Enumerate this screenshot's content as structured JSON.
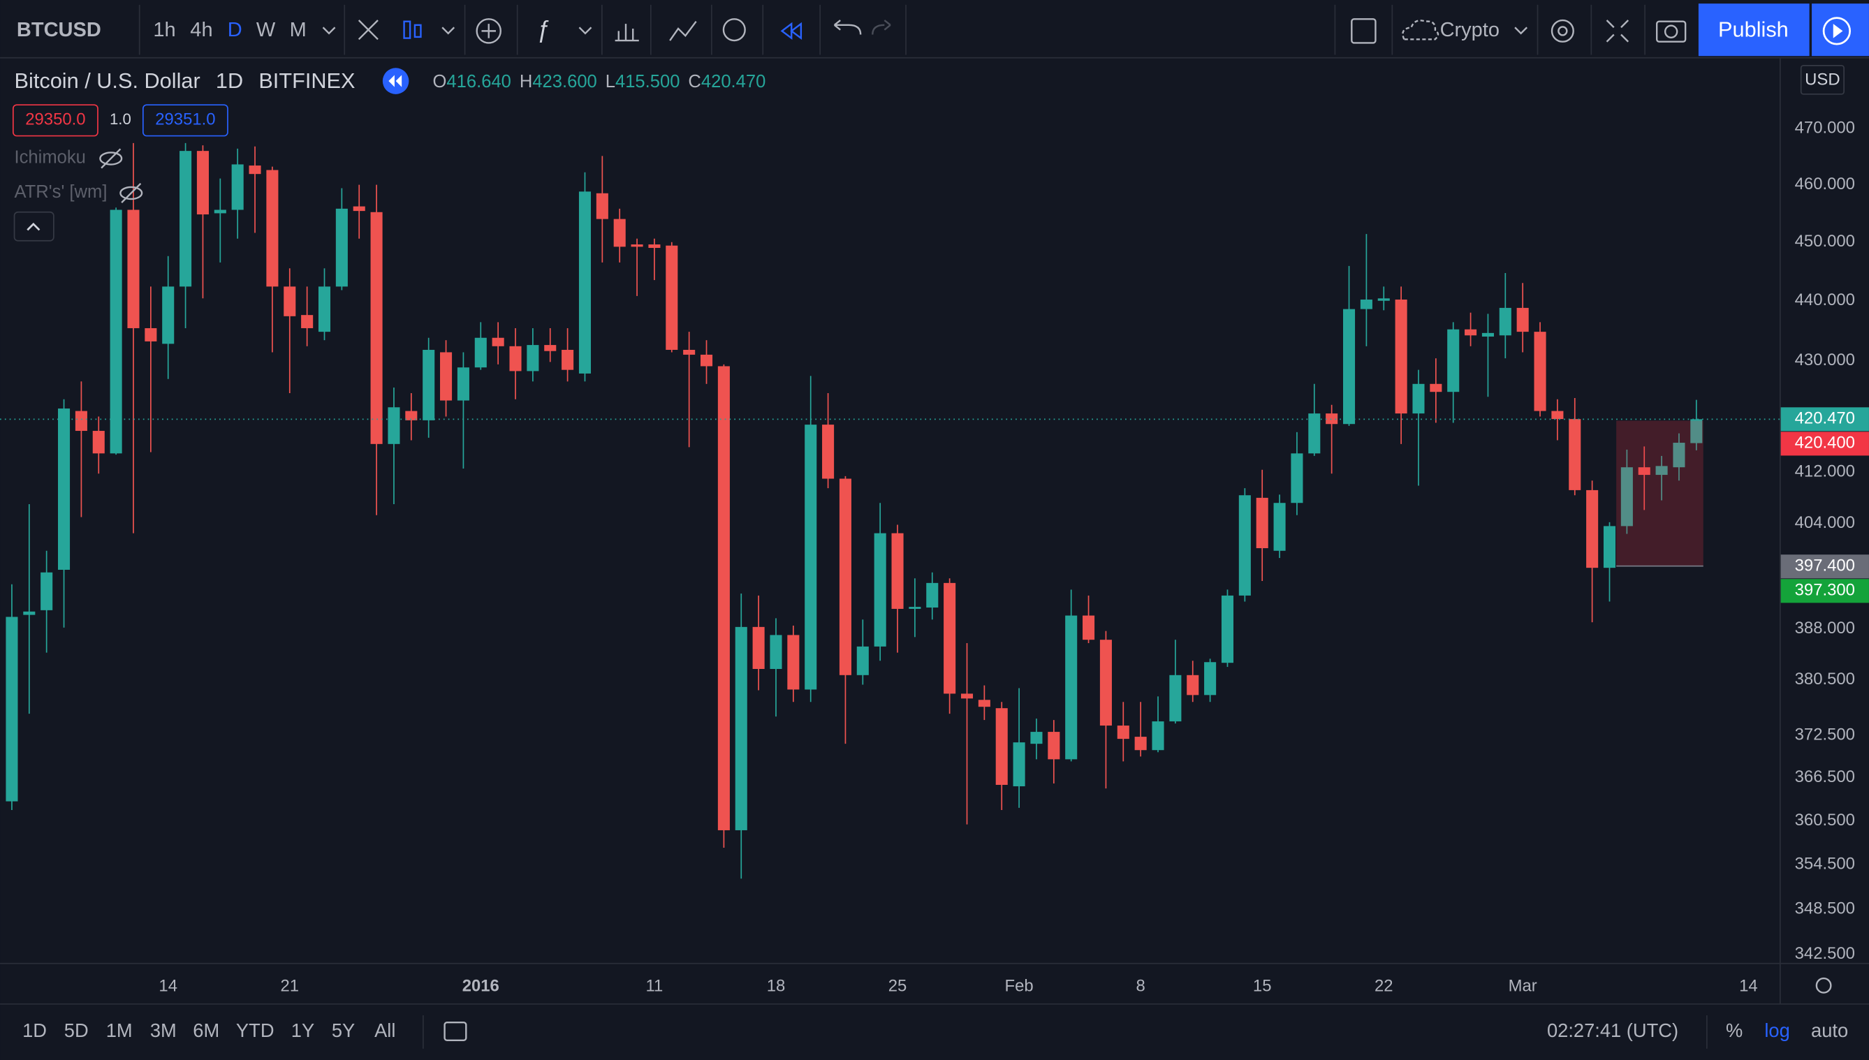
{
  "toolbar": {
    "symbol": "BTCUSD",
    "intervals": [
      "1h",
      "4h",
      "D",
      "W",
      "M"
    ],
    "active_interval": 2,
    "symbol_type": "Crypto",
    "publish": "Publish"
  },
  "legend": {
    "title": "Bitcoin / U.S. Dollar",
    "interval": "1D",
    "exchange": "BITFINEX",
    "ohlc": [
      {
        "label": "O",
        "value": "416.640"
      },
      {
        "label": "H",
        "value": "423.600"
      },
      {
        "label": "L",
        "value": "415.500"
      },
      {
        "label": "C",
        "value": "420.470"
      }
    ]
  },
  "order_panel": {
    "sell": "29350.0",
    "quantity": "1.0",
    "buy": "29351.0"
  },
  "indicators": [
    "Ichimoku",
    "ATR's' [wm]"
  ],
  "currency": "USD",
  "bottom_bar": {
    "ranges": [
      "1D",
      "5D",
      "1M",
      "3M",
      "6M",
      "YTD",
      "1Y",
      "5Y",
      "All"
    ],
    "clock": "02:27:41 (UTC)",
    "percent": "%",
    "log": "log",
    "auto": "auto"
  },
  "chart_data": {
    "type": "candlestick",
    "log_scale": true,
    "grid": false,
    "up_color": "#26a69a",
    "down_color": "#ef5350",
    "categories": [
      null,
      null,
      null,
      null,
      null,
      null,
      null,
      null,
      null,
      "14",
      null,
      null,
      null,
      null,
      null,
      null,
      "21",
      null,
      null,
      null,
      null,
      null,
      null,
      null,
      null,
      null,
      null,
      "2016",
      null,
      null,
      null,
      null,
      null,
      null,
      null,
      null,
      null,
      "11",
      null,
      null,
      null,
      null,
      null,
      null,
      "18",
      null,
      null,
      null,
      null,
      null,
      null,
      "25",
      null,
      null,
      null,
      null,
      null,
      null,
      "Feb",
      null,
      null,
      null,
      null,
      null,
      null,
      "8",
      null,
      null,
      null,
      null,
      null,
      null,
      "15",
      null,
      null,
      null,
      null,
      null,
      null,
      "22",
      null,
      null,
      null,
      null,
      null,
      null,
      null,
      "Mar",
      null,
      null,
      null,
      null,
      null,
      null,
      null,
      null,
      null,
      null,
      null,
      null,
      "14"
    ],
    "open": [
      363.2,
      390.1,
      390.8,
      396.9,
      421.8,
      418.6,
      415.0,
      455.6,
      435.4,
      432.8,
      442.4,
      466.0,
      455.0,
      455.6,
      463.4,
      462.6,
      442.4,
      437.6,
      434.8,
      442.4,
      456.2,
      455.2,
      416.5,
      421.8,
      420.3,
      431.4,
      423.5,
      428.9,
      433.8,
      432.4,
      428.3,
      432.6,
      431.8,
      427.9,
      458.5,
      454.0,
      449.6,
      449.6,
      449.4,
      431.8,
      431.0,
      429.1,
      359.2,
      388.3,
      382.1,
      387.1,
      379.1,
      419.6,
      411.0,
      381.2,
      385.4,
      402.5,
      391.0,
      391.2,
      394.9,
      378.5,
      377.6,
      376.4,
      365.3,
      371.3,
      373.0,
      369.1,
      390.0,
      386.4,
      373.9,
      372.3,
      370.4,
      374.5,
      381.2,
      378.3,
      383.0,
      393.0,
      408.0,
      399.8,
      407.2,
      415.0,
      421.4,
      419.7,
      438.6,
      440.0,
      440.2,
      421.4,
      426.2,
      424.9,
      435.2,
      434.0,
      434.2,
      438.8,
      434.8,
      421.8,
      420.5,
      409.2,
      397.2,
      403.6,
      412.8,
      411.6,
      412.8,
      416.64,
      null,
      null,
      null
    ],
    "high": [
      394.7,
      407.0,
      399.8,
      423.7,
      426.6,
      420.9,
      456.0,
      467.4,
      442.4,
      447.6,
      467.4,
      467.0,
      461.1,
      466.4,
      466.8,
      463.2,
      445.5,
      442.4,
      445.5,
      459.4,
      460.0,
      460.0,
      425.6,
      424.7,
      433.8,
      433.4,
      431.4,
      436.4,
      436.4,
      435.4,
      435.4,
      435.4,
      435.4,
      462.2,
      465.1,
      455.8,
      450.6,
      450.6,
      450.0,
      434.8,
      433.4,
      429.4,
      393.3,
      393.0,
      389.6,
      388.5,
      427.5,
      424.7,
      411.4,
      389.4,
      407.2,
      403.8,
      395.6,
      396.5,
      395.6,
      385.9,
      379.7,
      377.3,
      379.3,
      374.9,
      374.7,
      393.9,
      393.0,
      387.7,
      377.3,
      377.3,
      378.1,
      386.4,
      383.3,
      383.6,
      393.9,
      409.5,
      412.4,
      408.5,
      418.4,
      426.2,
      422.8,
      445.9,
      451.4,
      442.4,
      442.4,
      428.5,
      430.4,
      436.4,
      438.0,
      437.8,
      444.7,
      443.0,
      436.4,
      423.7,
      423.9,
      410.7,
      404.2,
      415.6,
      416.1,
      414.6,
      418.2,
      423.6,
      null,
      null,
      null
    ],
    "low": [
      362.0,
      375.6,
      384.5,
      388.2,
      405.0,
      411.8,
      414.8,
      402.5,
      415.2,
      427.0,
      435.4,
      440.4,
      446.5,
      450.6,
      451.6,
      431.4,
      424.7,
      432.4,
      433.4,
      441.8,
      450.6,
      405.3,
      407.0,
      417.1,
      417.5,
      420.9,
      412.6,
      428.5,
      429.4,
      423.7,
      426.6,
      429.8,
      426.6,
      426.6,
      446.5,
      446.5,
      440.8,
      443.5,
      431.4,
      416.0,
      426.2,
      356.8,
      352.6,
      379.0,
      375.2,
      377.3,
      377.3,
      409.5,
      371.3,
      379.8,
      383.3,
      384.5,
      386.8,
      389.4,
      375.6,
      360.0,
      374.7,
      362.0,
      362.3,
      369.1,
      365.7,
      368.8,
      385.9,
      365.0,
      368.8,
      369.5,
      370.1,
      374.2,
      377.3,
      377.3,
      382.4,
      392.1,
      395.2,
      398.7,
      405.3,
      414.6,
      411.8,
      419.4,
      432.4,
      438.4,
      416.5,
      409.9,
      419.9,
      419.9,
      432.4,
      424.1,
      430.4,
      431.4,
      420.9,
      417.1,
      408.4,
      389.0,
      392.1,
      402.4,
      406.1,
      407.6,
      410.7,
      415.5,
      null,
      null,
      null
    ],
    "close": [
      389.8,
      390.6,
      396.5,
      422.2,
      418.6,
      415.0,
      455.6,
      435.4,
      433.2,
      442.4,
      466.0,
      454.8,
      455.6,
      463.6,
      461.9,
      442.4,
      437.4,
      435.4,
      442.4,
      455.8,
      455.4,
      416.5,
      422.4,
      420.3,
      431.8,
      423.5,
      428.9,
      433.8,
      432.4,
      428.3,
      432.6,
      431.6,
      428.5,
      458.8,
      454.0,
      449.2,
      449.2,
      449.0,
      431.8,
      431.0,
      429.1,
      359.2,
      388.3,
      382.1,
      387.1,
      379.1,
      419.6,
      411.0,
      381.2,
      385.4,
      402.5,
      391.0,
      391.3,
      394.9,
      378.5,
      377.8,
      376.6,
      365.5,
      371.5,
      373.0,
      369.1,
      390.0,
      386.4,
      373.9,
      372.0,
      370.4,
      374.5,
      381.2,
      378.3,
      383.1,
      393.0,
      408.4,
      400.2,
      407.2,
      415.0,
      421.4,
      419.7,
      438.6,
      440.2,
      440.4,
      421.4,
      426.2,
      424.9,
      435.2,
      434.2,
      434.6,
      438.8,
      434.8,
      421.8,
      420.5,
      409.2,
      397.2,
      403.6,
      412.8,
      411.6,
      413.0,
      416.7,
      420.47,
      null,
      null,
      null
    ],
    "ylim": [
      341.4,
      482.6
    ],
    "yticks": [
      {
        "value": 470,
        "label": "470.000"
      },
      {
        "value": 460,
        "label": "460.000"
      },
      {
        "value": 450,
        "label": "450.000"
      },
      {
        "value": 440,
        "label": "440.000"
      },
      {
        "value": 430,
        "label": "430.000"
      },
      {
        "value": 412,
        "label": "412.000"
      },
      {
        "value": 404,
        "label": "404.000"
      },
      {
        "value": 388,
        "label": "388.000"
      },
      {
        "value": 380.5,
        "label": "380.500"
      },
      {
        "value": 372.5,
        "label": "372.500"
      },
      {
        "value": 366.5,
        "label": "366.500"
      },
      {
        "value": 360.5,
        "label": "360.500"
      },
      {
        "value": 354.5,
        "label": "354.500"
      },
      {
        "value": 348.5,
        "label": "348.500"
      },
      {
        "value": 342.5,
        "label": "342.500"
      }
    ],
    "price_labels": [
      {
        "value": 420.47,
        "label": "420.470",
        "color": "#26a69a"
      },
      {
        "value": 420.4,
        "label": "420.400",
        "color": "#f23645"
      },
      {
        "value": 397.4,
        "label": "397.400",
        "color": "#6a6d78"
      },
      {
        "value": 397.3,
        "label": "397.300",
        "color": "#14a33a"
      }
    ]
  }
}
